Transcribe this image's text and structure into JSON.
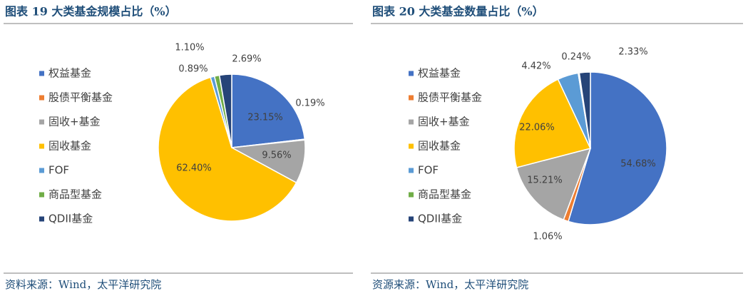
{
  "chart_data": [
    {
      "type": "pie",
      "title": "图表 19  大类基金规模占比（%）",
      "categories": [
        "权益基金",
        "股债平衡基金",
        "固收+基金",
        "固收基金",
        "FOF",
        "商品型基金",
        "QDII基金"
      ],
      "values": [
        23.15,
        0.19,
        9.56,
        62.4,
        0.89,
        1.1,
        2.69
      ],
      "value_labels": [
        "23.15%",
        "0.19%",
        "9.56%",
        "62.40%",
        "0.89%",
        "1.10%",
        "2.69%"
      ],
      "colors": [
        "#4472c4",
        "#ed7d31",
        "#a5a5a5",
        "#ffc000",
        "#5b9bd5",
        "#70ad47",
        "#264478"
      ],
      "legend": "left",
      "source": "资料来源：Wind，太平洋研究院"
    },
    {
      "type": "pie",
      "title": "图表 20  大类基金数量占比（%）",
      "categories": [
        "权益基金",
        "股债平衡基金",
        "固收+基金",
        "固收基金",
        "FOF",
        "商品型基金",
        "QDII基金"
      ],
      "values": [
        54.68,
        1.06,
        15.21,
        22.06,
        4.42,
        0.24,
        2.33
      ],
      "value_labels": [
        "54.68%",
        "1.06%",
        "15.21%",
        "22.06%",
        "4.42%",
        "0.24%",
        "2.33%"
      ],
      "colors": [
        "#4472c4",
        "#ed7d31",
        "#a5a5a5",
        "#ffc000",
        "#5b9bd5",
        "#70ad47",
        "#264478"
      ],
      "legend": "left",
      "source": "资源来源：Wind，太平洋研究院"
    }
  ]
}
